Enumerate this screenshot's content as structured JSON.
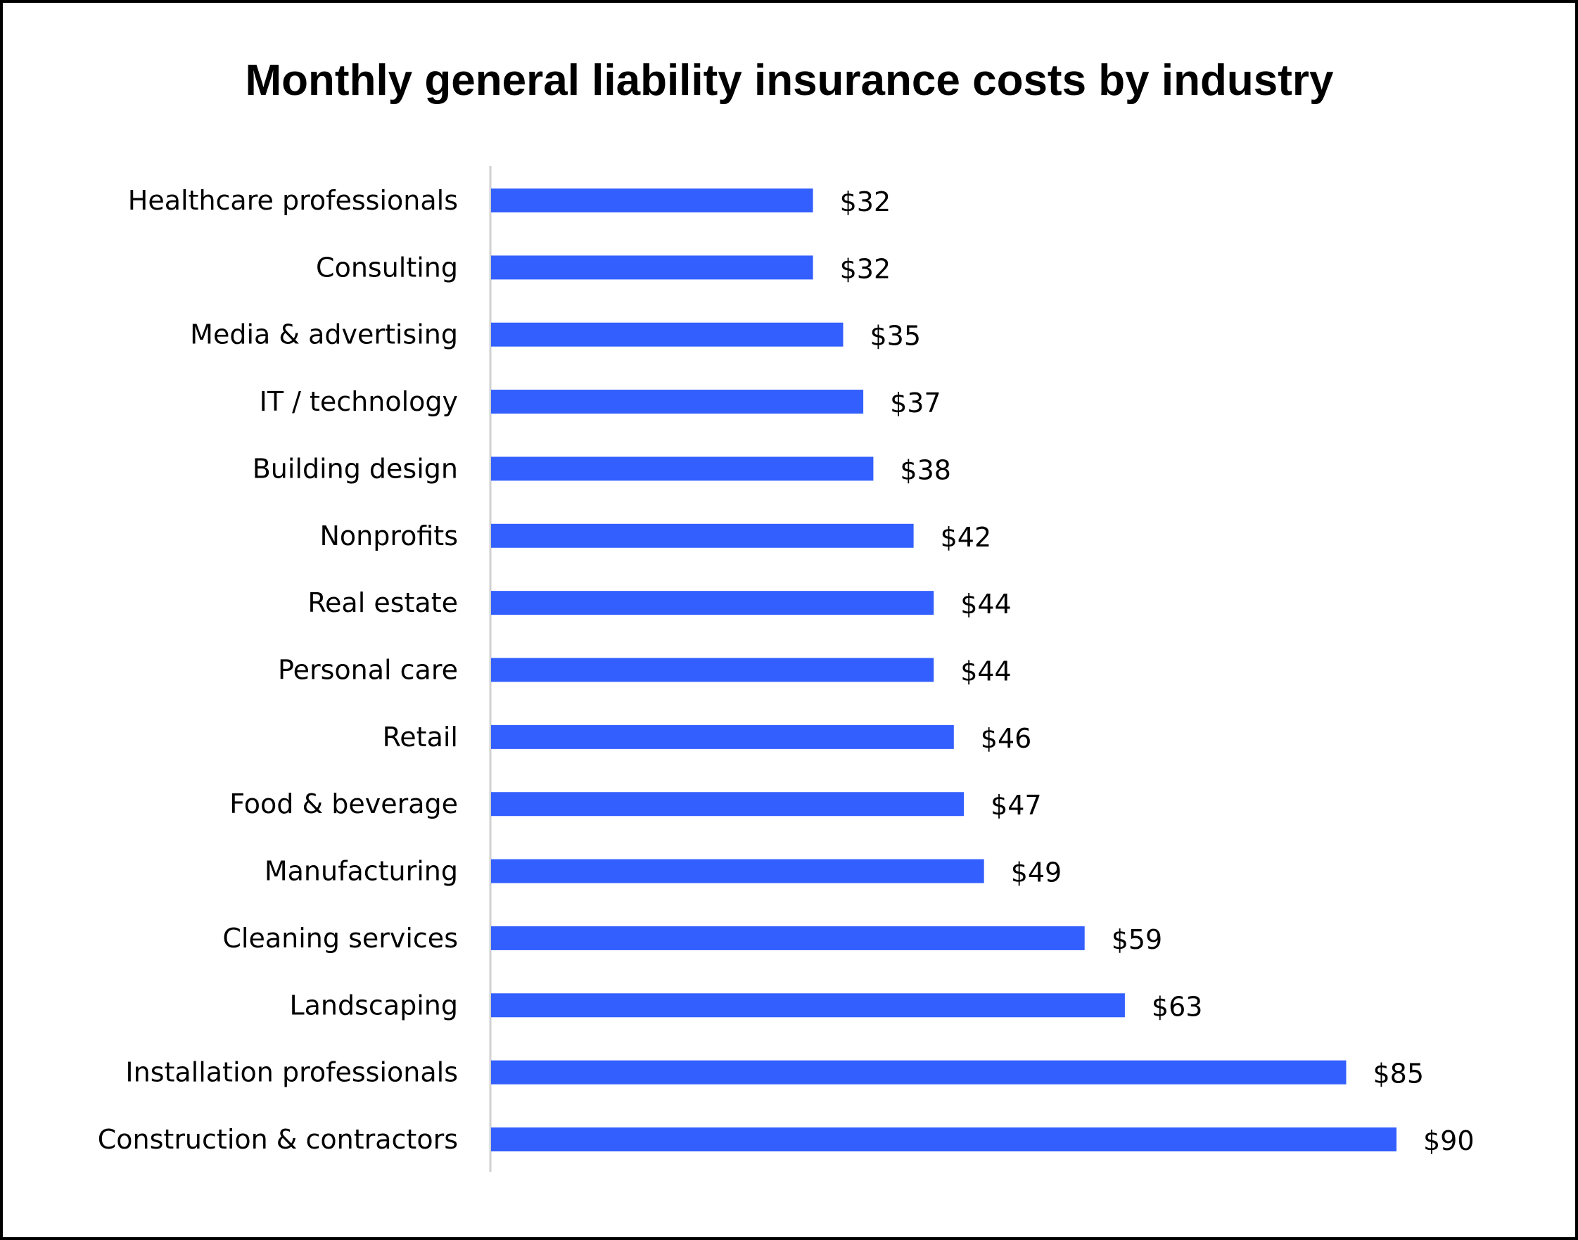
{
  "chart_data": {
    "type": "bar",
    "orientation": "horizontal",
    "title": "Monthly general liability insurance costs by industry",
    "xlabel": "",
    "ylabel": "",
    "categories": [
      "Healthcare professionals",
      "Consulting",
      "Media & advertising",
      "IT / technology",
      "Building design",
      "Nonprofits",
      "Real estate",
      "Personal care",
      "Retail",
      "Food & beverage",
      "Manufacturing",
      "Cleaning services",
      "Landscaping",
      "Installation professionals",
      "Construction & contractors"
    ],
    "values": [
      32,
      32,
      35,
      37,
      38,
      42,
      44,
      44,
      46,
      47,
      49,
      59,
      63,
      85,
      90
    ],
    "data_labels": [
      "$32",
      "$32",
      "$35",
      "$37",
      "$38",
      "$42",
      "$44",
      "$44",
      "$46",
      "$47",
      "$49",
      "$59",
      "$63",
      "$85",
      "$90"
    ],
    "xlim": [
      0,
      90
    ],
    "grid": false,
    "legend": "none",
    "bar_color": "#335FFF"
  }
}
